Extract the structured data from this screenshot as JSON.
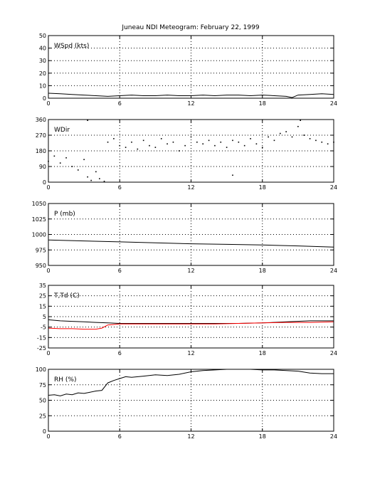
{
  "title": "Juneau NDI Meteogram:  February 22, 1999",
  "colors": {
    "axis": "#000000",
    "trace": "#000000",
    "dewpoint": "#ff0000",
    "grid": "#000000"
  },
  "chart_data": [
    {
      "type": "line",
      "label": "WSpd (kts)",
      "grid": true,
      "xlim": [
        0,
        24
      ],
      "xticks": [
        0,
        6,
        12,
        18,
        24
      ],
      "ylim": [
        0,
        50
      ],
      "yticks": [
        0,
        10,
        20,
        30,
        40,
        50
      ],
      "series": [
        {
          "x": [
            0,
            1,
            2,
            3,
            4,
            5,
            6,
            7,
            8,
            9,
            10,
            11,
            12,
            13,
            14,
            15,
            16,
            17,
            18,
            19,
            20,
            20.5,
            21,
            22,
            23,
            24
          ],
          "values": [
            4,
            3.5,
            3,
            2.5,
            2,
            1.5,
            2,
            2.5,
            2,
            2,
            2.5,
            2,
            2,
            2.5,
            2,
            2.5,
            2.5,
            2,
            2.5,
            2,
            1.5,
            0.5,
            2.5,
            3,
            3.5,
            3
          ]
        }
      ]
    },
    {
      "type": "scatter",
      "label": "WDir",
      "grid": true,
      "xlim": [
        0,
        24
      ],
      "xticks": [
        0,
        6,
        12,
        18,
        24
      ],
      "ylim": [
        0,
        360
      ],
      "yticks": [
        0,
        90,
        180,
        270,
        360
      ],
      "series": [
        {
          "x": [
            0,
            0.5,
            1,
            1.5,
            2,
            2.5,
            3,
            3.3,
            3.6,
            4,
            4.3,
            4.7,
            5,
            5.5,
            6,
            6.5,
            7,
            7.5,
            8,
            8.5,
            9,
            9.5,
            10,
            10.5,
            11,
            11.5,
            12,
            12.5,
            13,
            13.5,
            14,
            14.5,
            15,
            15.5,
            16,
            16.5,
            17,
            17.5,
            18,
            18.5,
            19,
            19.5,
            20,
            20.5,
            21,
            21.5,
            22,
            22.5,
            23,
            23.5,
            24,
            3.3,
            21.2,
            15.5
          ],
          "values": [
            120,
            150,
            110,
            140,
            90,
            70,
            130,
            30,
            10,
            60,
            20,
            5,
            230,
            250,
            210,
            200,
            230,
            190,
            240,
            210,
            200,
            250,
            220,
            230,
            180,
            210,
            260,
            230,
            220,
            240,
            210,
            230,
            200,
            240,
            230,
            210,
            250,
            220,
            200,
            260,
            240,
            280,
            290,
            260,
            320,
            270,
            250,
            240,
            230,
            220,
            230,
            355,
            355,
            40
          ]
        }
      ]
    },
    {
      "type": "line",
      "label": "P (mb)",
      "grid": true,
      "xlim": [
        0,
        24
      ],
      "xticks": [
        0,
        6,
        12,
        18,
        24
      ],
      "ylim": [
        950,
        1050
      ],
      "yticks": [
        950,
        975,
        1000,
        1025,
        1050
      ],
      "series": [
        {
          "x": [
            0,
            3,
            6,
            9,
            12,
            15,
            18,
            21,
            24
          ],
          "values": [
            991,
            989.5,
            988,
            986.5,
            985,
            984,
            983,
            981.5,
            979.5
          ]
        }
      ]
    },
    {
      "type": "line",
      "label": "T,Td (C)",
      "grid": true,
      "xlim": [
        0,
        24
      ],
      "xticks": [
        0,
        6,
        12,
        18,
        24
      ],
      "ylim": [
        -25,
        35
      ],
      "yticks": [
        -25,
        -15,
        -5,
        5,
        15,
        25,
        35
      ],
      "series": [
        {
          "name": "T",
          "color": "#000000",
          "x": [
            0,
            1,
            2,
            3,
            4,
            5,
            6,
            8,
            10,
            12,
            14,
            16,
            18,
            20,
            22,
            24
          ],
          "values": [
            2,
            1,
            0.5,
            0,
            -0.5,
            -1,
            -1.5,
            -1.5,
            -1.5,
            -1.5,
            -1.5,
            -1.5,
            -1,
            0,
            1,
            1
          ]
        },
        {
          "name": "Td",
          "color": "#ff0000",
          "x": [
            0,
            1,
            2,
            3,
            4,
            4.5,
            5,
            6,
            8,
            10,
            12,
            14,
            16,
            18,
            20,
            22,
            24
          ],
          "values": [
            -6,
            -6.5,
            -6.5,
            -7,
            -7,
            -6,
            -3,
            -2,
            -2,
            -2,
            -2,
            -2,
            -1.5,
            -1,
            -0.5,
            -0.5,
            0
          ]
        }
      ]
    },
    {
      "type": "line",
      "label": "RH (%)",
      "grid": true,
      "xlim": [
        0,
        24
      ],
      "xticks": [
        0,
        6,
        12,
        18,
        24
      ],
      "ylim": [
        0,
        100
      ],
      "yticks": [
        0,
        25,
        50,
        75,
        100
      ],
      "series": [
        {
          "x": [
            0,
            0.5,
            1,
            1.5,
            2,
            2.5,
            3,
            3.5,
            4,
            4.5,
            5,
            5.5,
            6,
            6.5,
            7,
            8,
            9,
            10,
            11,
            12,
            13,
            14,
            15,
            16,
            17,
            18,
            19,
            20,
            21,
            22,
            23,
            24
          ],
          "values": [
            58,
            59,
            57,
            60,
            59,
            62,
            61,
            63,
            65,
            66,
            78,
            82,
            85,
            88,
            87,
            89,
            91,
            90,
            92,
            96,
            98,
            99,
            100,
            100,
            100,
            99,
            99,
            98,
            97,
            94,
            93,
            93
          ]
        }
      ]
    }
  ]
}
